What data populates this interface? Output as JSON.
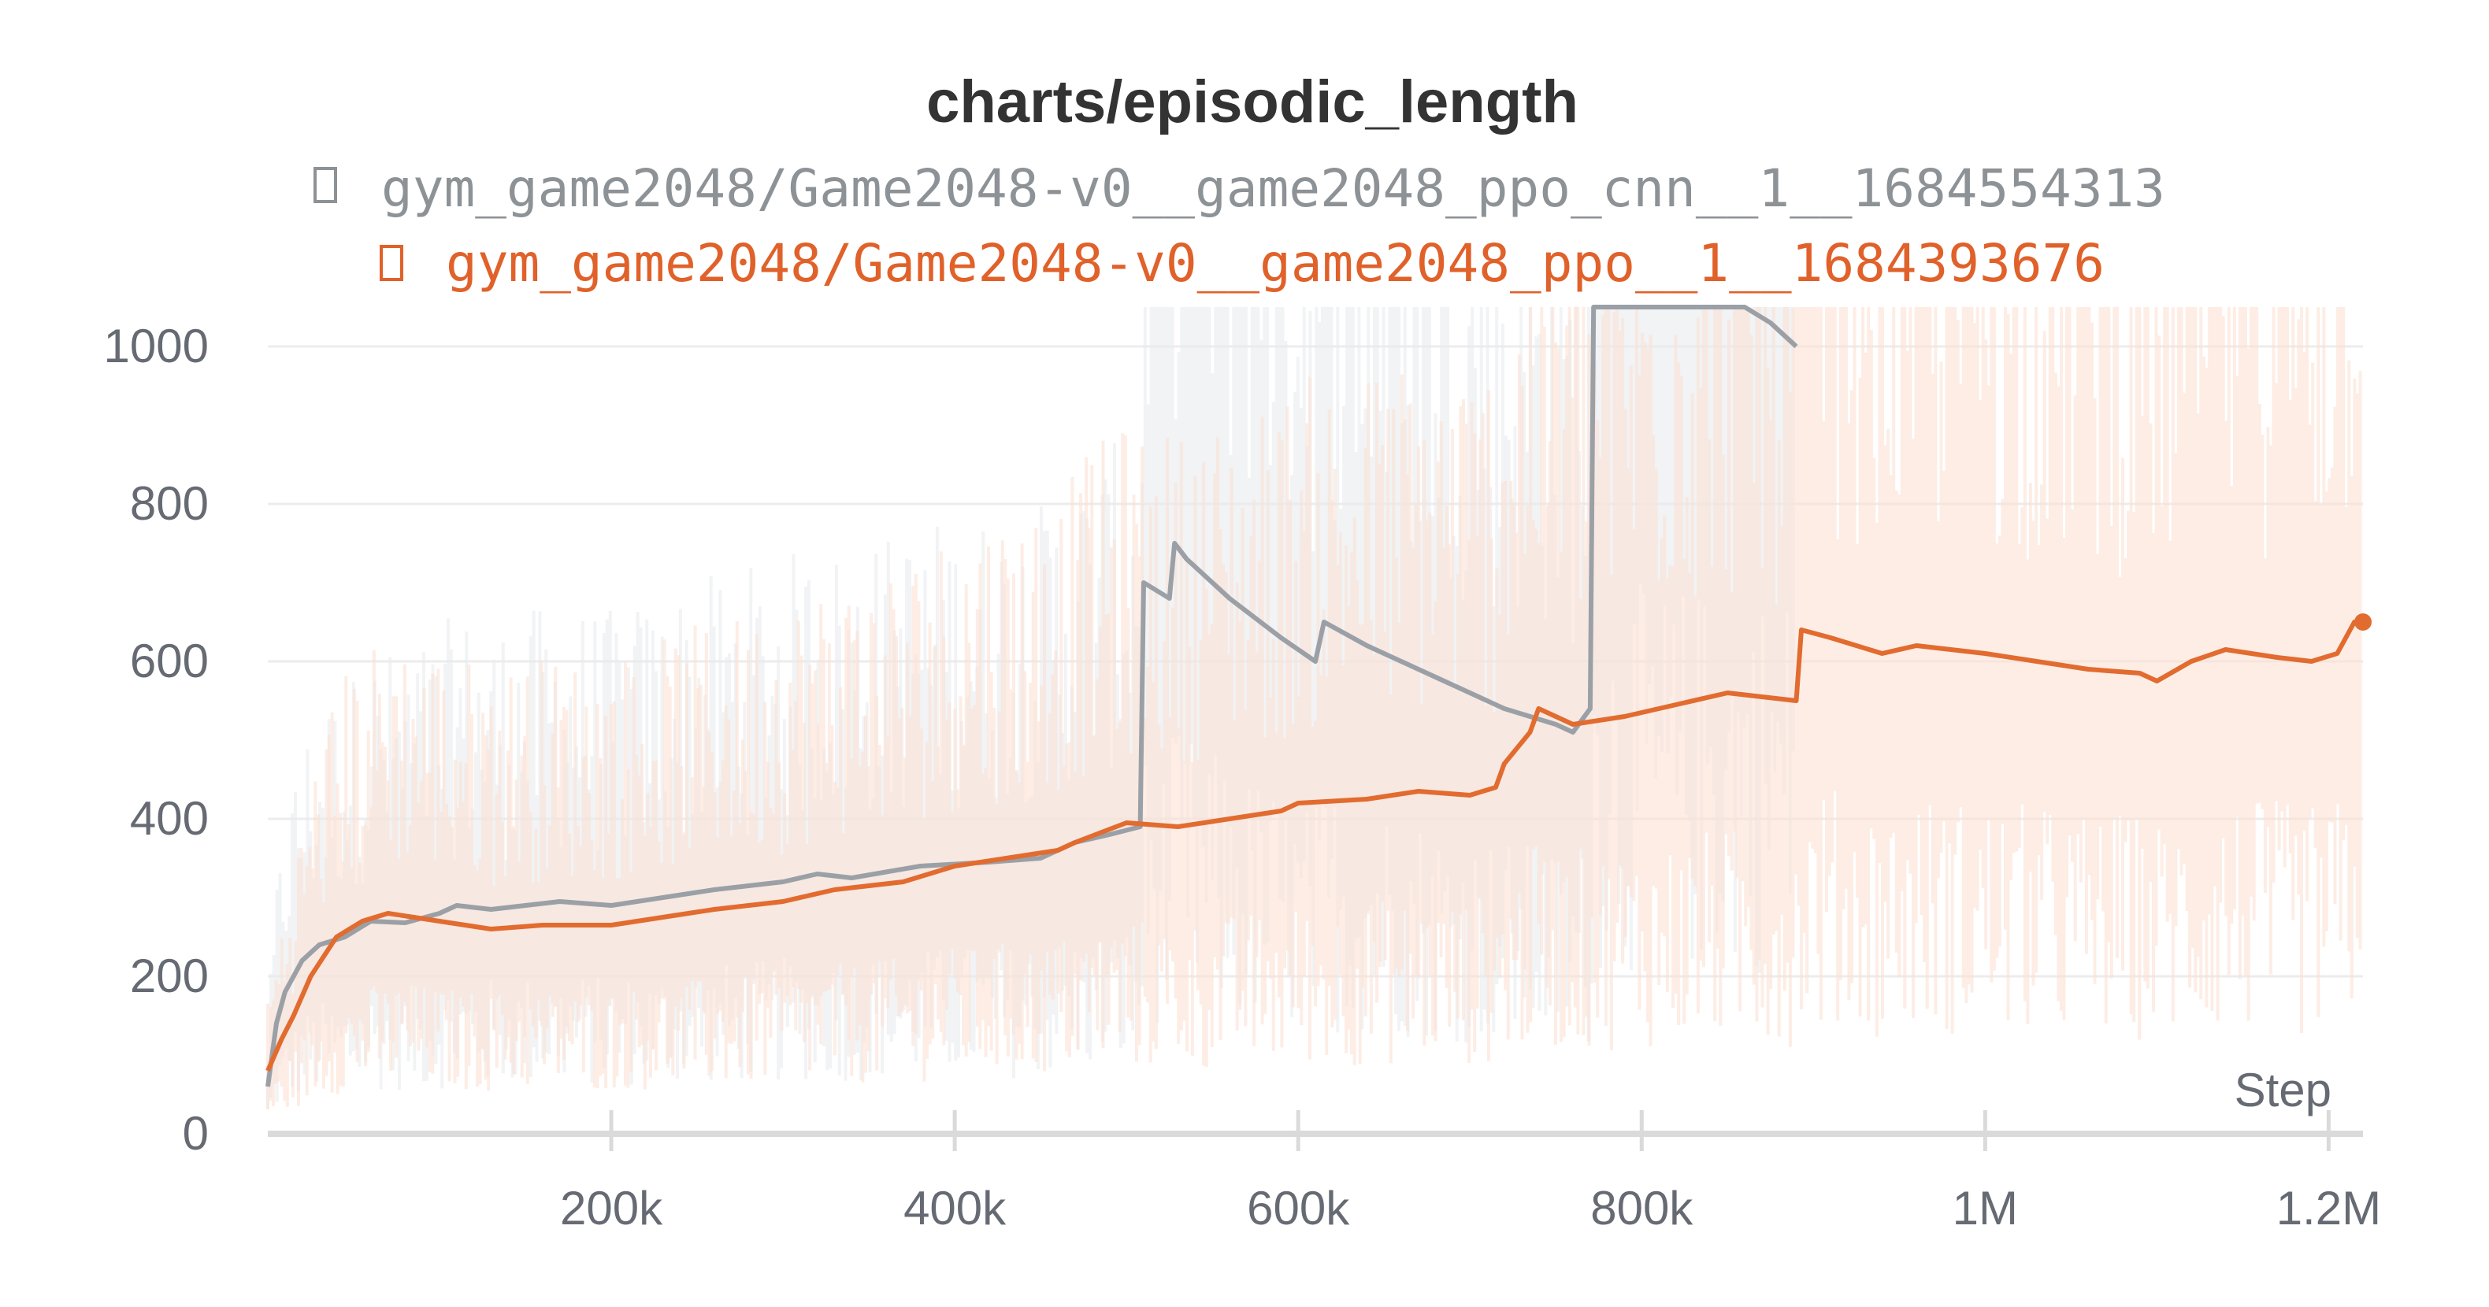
{
  "chart_data": {
    "type": "line",
    "title": "charts/episodic_length",
    "xlabel": "Step",
    "ylabel": "",
    "xlim": [
      0,
      1220000
    ],
    "ylim": [
      0,
      1050
    ],
    "x_ticks": [
      {
        "value": 200000,
        "label": "200k"
      },
      {
        "value": 400000,
        "label": "400k"
      },
      {
        "value": 600000,
        "label": "600k"
      },
      {
        "value": 800000,
        "label": "800k"
      },
      {
        "value": 1000000,
        "label": "1M"
      },
      {
        "value": 1200000,
        "label": "1.2M"
      }
    ],
    "y_ticks": [
      {
        "value": 0,
        "label": "0"
      },
      {
        "value": 200,
        "label": "200"
      },
      {
        "value": 400,
        "label": "400"
      },
      {
        "value": 600,
        "label": "600"
      },
      {
        "value": 800,
        "label": "800"
      },
      {
        "value": 1000,
        "label": "1000"
      }
    ],
    "grid": true,
    "legend_position": "top-center",
    "series": [
      {
        "name": "gym_game2048/Game2048-v0__game2048_ppo_cnn__1__1684554313",
        "color": "#9aa0a6",
        "legend_color": "#8d9296",
        "x": [
          0,
          5000,
          10000,
          20000,
          30000,
          45000,
          60000,
          80000,
          100000,
          110000,
          130000,
          150000,
          170000,
          200000,
          230000,
          260000,
          300000,
          320000,
          340000,
          380000,
          420000,
          450000,
          470000,
          490000,
          508000,
          510000,
          525000,
          528000,
          535000,
          560000,
          590000,
          610000,
          615000,
          640000,
          660000,
          690000,
          720000,
          750000,
          760000,
          770000,
          772000,
          775000,
          860000,
          875000,
          890000
        ],
        "y": [
          60,
          140,
          180,
          220,
          240,
          250,
          270,
          268,
          280,
          290,
          285,
          290,
          295,
          290,
          300,
          310,
          320,
          330,
          325,
          340,
          345,
          350,
          370,
          380,
          390,
          700,
          680,
          750,
          730,
          680,
          630,
          600,
          650,
          620,
          600,
          570,
          540,
          520,
          510,
          540,
          1050,
          1050,
          1070,
          1030,
          1000
        ]
      },
      {
        "name": "gym_game2048/Game2048-v0__game2048_ppo__1__1684393676",
        "color": "#e26b2f",
        "legend_color": "#e0612a",
        "x": [
          0,
          8000,
          15000,
          25000,
          40000,
          55000,
          70000,
          85000,
          100000,
          130000,
          160000,
          200000,
          230000,
          260000,
          300000,
          330000,
          370000,
          400000,
          430000,
          460000,
          470000,
          500000,
          530000,
          560000,
          590000,
          600000,
          640000,
          670000,
          700000,
          715000,
          720000,
          735000,
          740000,
          760000,
          790000,
          820000,
          850000,
          870000,
          890000,
          893000,
          910000,
          940000,
          960000,
          1000000,
          1030000,
          1060000,
          1090000,
          1100000,
          1120000,
          1140000,
          1170000,
          1190000,
          1205000,
          1215000,
          1220000
        ],
        "y": [
          80,
          120,
          150,
          200,
          250,
          270,
          280,
          275,
          270,
          260,
          265,
          265,
          275,
          285,
          295,
          310,
          320,
          340,
          350,
          360,
          370,
          395,
          390,
          400,
          410,
          420,
          425,
          435,
          430,
          440,
          470,
          510,
          540,
          520,
          530,
          545,
          560,
          555,
          550,
          640,
          630,
          610,
          620,
          610,
          600,
          590,
          585,
          575,
          600,
          615,
          605,
          600,
          610,
          650,
          650
        ]
      }
    ]
  }
}
